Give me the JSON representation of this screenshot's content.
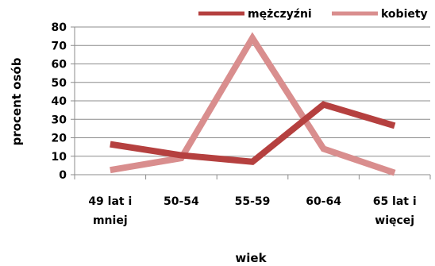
{
  "chart_data": {
    "type": "line",
    "categories": [
      "49 lat i mniej",
      "50-54",
      "55-59",
      "60-64",
      "65 lat i więcej"
    ],
    "category_lines": [
      [
        "49 lat i",
        "mniej"
      ],
      [
        "50-54"
      ],
      [
        "55-59"
      ],
      [
        "60-64"
      ],
      [
        "65 lat i",
        "więcej"
      ]
    ],
    "series": [
      {
        "name": "mężczyźni",
        "color": "#b5403f",
        "values": [
          16.5,
          10.5,
          7,
          38,
          26.5
        ]
      },
      {
        "name": "kobiety",
        "color": "#d98e8e",
        "values": [
          2.5,
          9,
          74,
          14,
          1
        ]
      }
    ],
    "xlabel": "wiek",
    "ylabel": "procent osób",
    "ylim": [
      0,
      80
    ],
    "yticks": [
      0,
      10,
      20,
      30,
      40,
      50,
      60,
      70,
      80
    ],
    "grid": true,
    "legend_position": "top-right"
  }
}
